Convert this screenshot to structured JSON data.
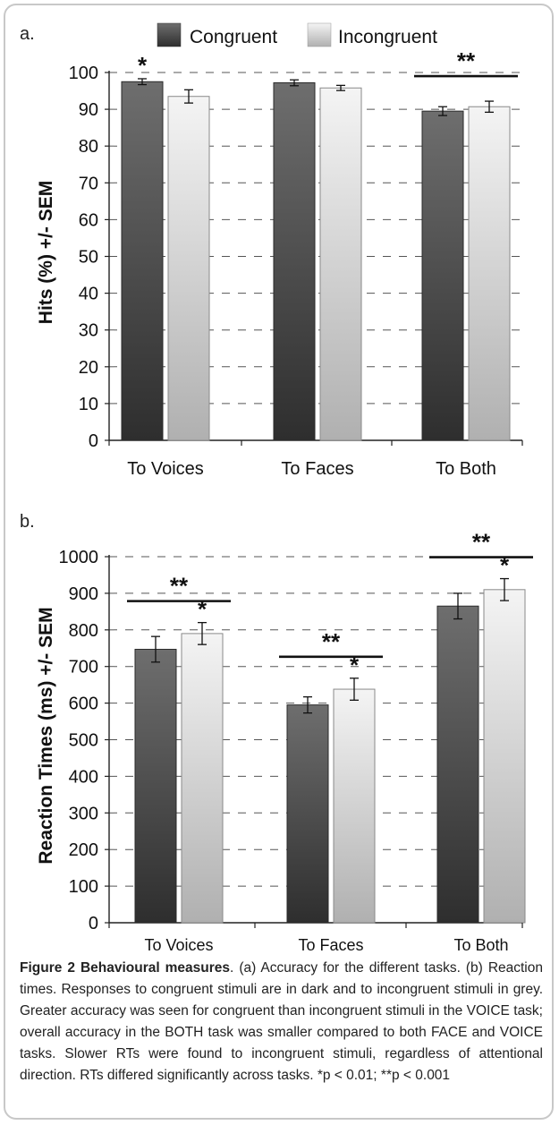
{
  "legend": [
    {
      "name": "Congruent",
      "color": "#555555"
    },
    {
      "name": "Incongruent",
      "color": "#dcdcdc"
    }
  ],
  "caption": {
    "title": "Figure 2 Behavioural measures",
    "text": ". (a) Accuracy for the different tasks. (b) Reaction times. Responses to congruent stimuli are in dark and to incongruent stimuli in grey. Greater accuracy was seen for congruent than incongruent stimuli in the VOICE task; overall accuracy in the BOTH task was smaller compared to both FACE and VOICE tasks. Slower RTs were found to incongruent stimuli, regardless of attentional direction. RTs differed significantly across tasks. *p < 0.01; **p < 0.001"
  },
  "chart_data": [
    {
      "type": "bar",
      "panel": "a.",
      "ylabel": "Hits (%) +/- SEM",
      "categories": [
        "To Voices",
        "To Faces",
        "To Both"
      ],
      "ylim": [
        0,
        100
      ],
      "yticks": [
        0,
        10,
        20,
        30,
        40,
        50,
        60,
        70,
        80,
        90,
        100
      ],
      "series": [
        {
          "name": "Congruent",
          "values": [
            97.5,
            97.2,
            89.5
          ],
          "errors": [
            0.8,
            0.8,
            1.2
          ]
        },
        {
          "name": "Incongruent",
          "values": [
            93.5,
            95.8,
            90.7
          ],
          "errors": [
            1.8,
            0.7,
            1.5
          ]
        }
      ],
      "annotations": [
        {
          "text": "*",
          "category": 0,
          "series": 0,
          "type": "star"
        },
        {
          "text": "**",
          "category": 2,
          "type": "bracket"
        }
      ]
    },
    {
      "type": "bar",
      "panel": "b.",
      "ylabel": "Reaction Times (ms) +/- SEM",
      "categories": [
        "To Voices",
        "To Faces",
        "To Both"
      ],
      "ylim": [
        0,
        1000
      ],
      "yticks": [
        0,
        100,
        200,
        300,
        400,
        500,
        600,
        700,
        800,
        900,
        1000
      ],
      "series": [
        {
          "name": "Congruent",
          "values": [
            747,
            595,
            865
          ],
          "errors": [
            35,
            22,
            35
          ]
        },
        {
          "name": "Incongruent",
          "values": [
            790,
            638,
            910
          ],
          "errors": [
            30,
            30,
            30
          ]
        }
      ],
      "annotations": [
        {
          "text": "**",
          "category": 0,
          "type": "bracket"
        },
        {
          "text": "*",
          "category": 0,
          "series": 1,
          "type": "star"
        },
        {
          "text": "**",
          "category": 1,
          "type": "bracket"
        },
        {
          "text": "*",
          "category": 1,
          "series": 1,
          "type": "star"
        },
        {
          "text": "**",
          "category": 2,
          "type": "bracket"
        },
        {
          "text": "*",
          "category": 2,
          "series": 1,
          "type": "star"
        }
      ]
    }
  ]
}
